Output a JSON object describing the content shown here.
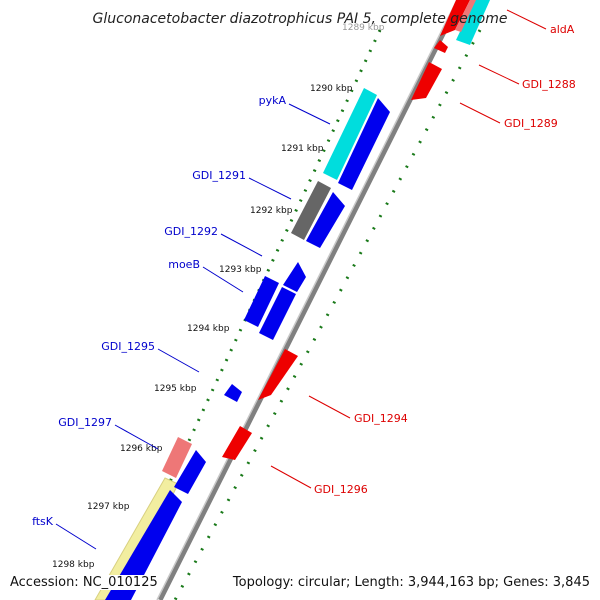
{
  "title": "Gluconacetobacter diazotrophicus PAI 5, complete genome",
  "footer": {
    "accession": "Accession: NC_010125",
    "topology": "Topology: circular; Length: 3,944,163 bp; Genes: 3,845"
  },
  "colors": {
    "forward_gene": "#0000ee",
    "reverse_gene": "#ee0000",
    "cyan_feature": "#00dddd",
    "gray_feature": "#666666",
    "pink_feature": "#ee7777",
    "yellow_feature": "#f2eea0",
    "backbone": "#808080",
    "gc_dots": "#1a7a1a",
    "forward_label": "#0000cc",
    "reverse_label": "#dd0000"
  },
  "ticks": [
    "1289 kbp",
    "1290 kbp",
    "1291 kbp",
    "1292 kbp",
    "1293 kbp",
    "1294 kbp",
    "1295 kbp",
    "1296 kbp",
    "1297 kbp",
    "1298 kbp"
  ],
  "forward_labels": [
    "pykA",
    "GDI_1291",
    "GDI_1292",
    "moeB",
    "GDI_1295",
    "GDI_1297",
    "ftsK"
  ],
  "reverse_labels": [
    "aldA",
    "GDI_1288",
    "GDI_1289",
    "GDI_1294",
    "GDI_1296"
  ]
}
